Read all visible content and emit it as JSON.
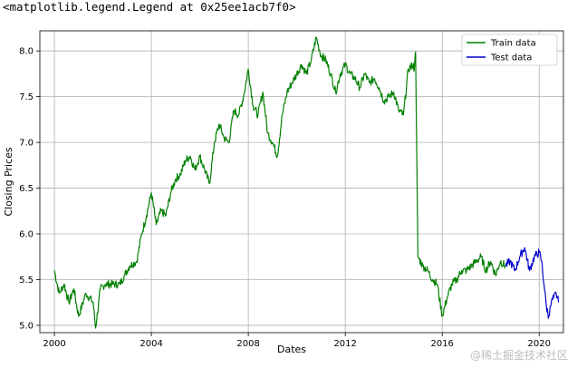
{
  "output_repr": "<matplotlib.legend.Legend at 0x25ee1acb7f0>",
  "watermark": "@稀土掘金技术社区",
  "chart_data": {
    "type": "line",
    "xlabel": "Dates",
    "ylabel": "Closing Prices",
    "xlim": [
      1999.4,
      2021.0
    ],
    "ylim": [
      4.92,
      8.22
    ],
    "x_ticks": [
      2000,
      2004,
      2008,
      2012,
      2016,
      2020
    ],
    "x_tick_labels": [
      "2000",
      "2004",
      "2008",
      "2012",
      "2016",
      "2020"
    ],
    "y_ticks": [
      5.0,
      5.5,
      6.0,
      6.5,
      7.0,
      7.5,
      8.0
    ],
    "y_tick_labels": [
      "5.0",
      "5.5",
      "6.0",
      "6.5",
      "7.0",
      "7.5",
      "8.0"
    ],
    "grid": true,
    "legend_position": "top-right",
    "series": [
      {
        "name": "Train data",
        "color": "#008000",
        "x": [
          2000.0,
          2000.2,
          2000.4,
          2000.6,
          2000.8,
          2001.0,
          2001.3,
          2001.6,
          2001.7,
          2001.9,
          2002.1,
          2002.4,
          2002.7,
          2002.9,
          2003.1,
          2003.4,
          2003.6,
          2003.8,
          2004.0,
          2004.2,
          2004.4,
          2004.6,
          2004.8,
          2005.0,
          2005.2,
          2005.4,
          2005.6,
          2005.8,
          2006.0,
          2006.2,
          2006.4,
          2006.6,
          2006.8,
          2007.0,
          2007.2,
          2007.4,
          2007.6,
          2007.8,
          2008.0,
          2008.2,
          2008.4,
          2008.6,
          2008.8,
          2009.0,
          2009.2,
          2009.4,
          2009.6,
          2009.8,
          2010.0,
          2010.2,
          2010.4,
          2010.6,
          2010.8,
          2011.0,
          2011.2,
          2011.4,
          2011.6,
          2011.8,
          2012.0,
          2012.2,
          2012.4,
          2012.6,
          2012.8,
          2013.0,
          2013.2,
          2013.4,
          2013.6,
          2013.8,
          2014.0,
          2014.2,
          2014.4,
          2014.6,
          2014.8,
          2014.85,
          2014.9,
          2015.0,
          2015.2,
          2015.4,
          2015.6,
          2015.8,
          2016.0,
          2016.2,
          2016.4,
          2016.6,
          2016.8,
          2017.0,
          2017.2,
          2017.4,
          2017.6,
          2017.8,
          2018.0,
          2018.2,
          2018.4,
          2018.6
        ],
        "y": [
          5.6,
          5.35,
          5.45,
          5.25,
          5.4,
          5.1,
          5.35,
          5.25,
          4.97,
          5.4,
          5.45,
          5.45,
          5.45,
          5.55,
          5.65,
          5.7,
          6.0,
          6.2,
          6.45,
          6.1,
          6.25,
          6.2,
          6.45,
          6.6,
          6.65,
          6.8,
          6.85,
          6.7,
          6.85,
          6.7,
          6.55,
          7.0,
          7.2,
          7.05,
          7.0,
          7.35,
          7.3,
          7.5,
          7.8,
          7.4,
          7.3,
          7.55,
          7.1,
          7.0,
          6.85,
          7.3,
          7.55,
          7.65,
          7.75,
          7.85,
          7.75,
          7.9,
          8.15,
          7.95,
          7.9,
          7.75,
          7.55,
          7.75,
          7.85,
          7.75,
          7.7,
          7.6,
          7.75,
          7.65,
          7.7,
          7.6,
          7.45,
          7.5,
          7.55,
          7.35,
          7.3,
          7.8,
          7.85,
          7.8,
          7.99,
          5.75,
          5.65,
          5.6,
          5.5,
          5.45,
          5.1,
          5.3,
          5.45,
          5.5,
          5.6,
          5.6,
          5.65,
          5.7,
          5.75,
          5.6,
          5.7,
          5.55,
          5.7,
          5.65
        ]
      },
      {
        "name": "Test data",
        "color": "#0000cc",
        "x": [
          2018.6,
          2018.8,
          2019.0,
          2019.2,
          2019.4,
          2019.6,
          2019.8,
          2020.0,
          2020.1,
          2020.2,
          2020.3,
          2020.4,
          2020.5,
          2020.6,
          2020.7,
          2020.8
        ],
        "y": [
          5.65,
          5.7,
          5.6,
          5.75,
          5.85,
          5.6,
          5.75,
          5.8,
          5.7,
          5.45,
          5.2,
          5.1,
          5.25,
          5.3,
          5.35,
          5.25
        ]
      }
    ]
  }
}
